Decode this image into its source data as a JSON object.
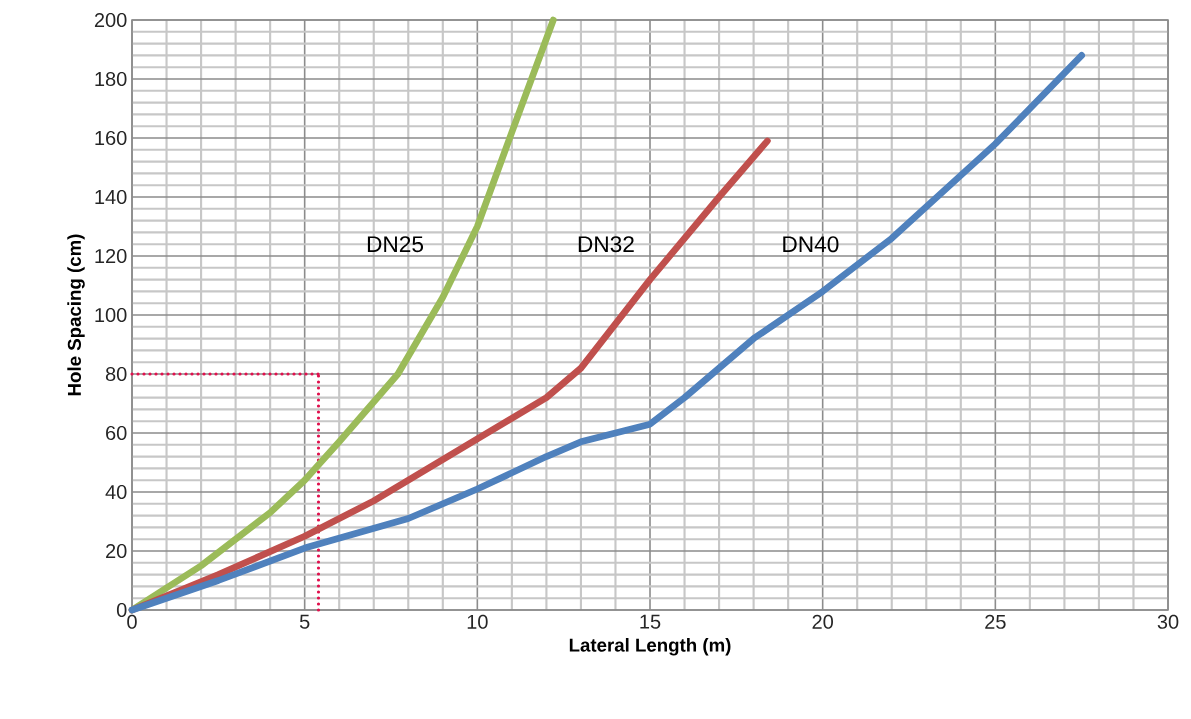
{
  "chart_data": {
    "type": "line",
    "xlabel": "Lateral Length (m)",
    "ylabel": "Hole Spacing (cm)",
    "xlim": [
      0,
      30
    ],
    "ylim": [
      0,
      200
    ],
    "xticks": [
      0,
      5,
      10,
      15,
      20,
      25,
      30
    ],
    "yticks": [
      0,
      20,
      40,
      60,
      80,
      100,
      120,
      140,
      160,
      180,
      200
    ],
    "grid": true,
    "marker": "none",
    "line_style": "solid",
    "series": [
      {
        "name": "DN25",
        "color": "#9bbb59",
        "x": [
          0,
          2,
          4,
          5,
          6,
          7.7,
          9,
          10,
          11,
          12.2
        ],
        "values": [
          0,
          15,
          33,
          44,
          57,
          80,
          106,
          130,
          162,
          200
        ]
      },
      {
        "name": "DN32",
        "color": "#c0504d",
        "x": [
          0,
          2.5,
          5,
          7,
          10,
          12,
          13,
          15,
          17,
          18.4
        ],
        "values": [
          0,
          12,
          25,
          37,
          58,
          72,
          82,
          112,
          140,
          159
        ]
      },
      {
        "name": "DN40",
        "color": "#4f81bd",
        "x": [
          0,
          2.5,
          5,
          8,
          10,
          12,
          13,
          15,
          16,
          18,
          20,
          22,
          25,
          27.5
        ],
        "values": [
          0,
          10,
          21,
          31,
          41,
          52,
          57,
          63,
          72,
          92,
          108,
          126,
          158,
          188
        ]
      }
    ],
    "ref_lines": [
      {
        "axis": "y",
        "value": 80,
        "color": "#e0104d",
        "line_style": "dotted"
      },
      {
        "axis": "x",
        "value": 5.4,
        "color": "#e0104d",
        "line_style": "dotted"
      }
    ]
  }
}
